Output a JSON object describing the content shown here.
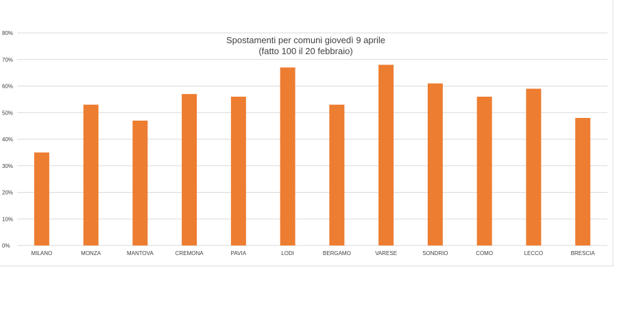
{
  "chart_data": {
    "type": "bar",
    "title": "Spostamenti per comuni giovedì 9 aprile",
    "subtitle": "(fatto 100 il 20 febbraio)",
    "categories": [
      "MILANO",
      "MONZA",
      "MANTOVA",
      "CREMONA",
      "PAVIA",
      "LODI",
      "BERGAMO",
      "VARESE",
      "SONDRIO",
      "COMO",
      "LECCO",
      "BRESCIA"
    ],
    "values": [
      35,
      53,
      47,
      57,
      56,
      67,
      53,
      68,
      61,
      56,
      59,
      48
    ],
    "ylim": [
      0,
      80
    ],
    "yticks": [
      0,
      10,
      20,
      30,
      40,
      50,
      60,
      70,
      80
    ],
    "ytick_labels": [
      "0%",
      "10%",
      "20%",
      "30%",
      "40%",
      "50%",
      "60%",
      "70%",
      "80%"
    ],
    "xlabel": "",
    "ylabel": "",
    "grid": true,
    "legend": "none",
    "bar_color": "#ed7d31"
  }
}
